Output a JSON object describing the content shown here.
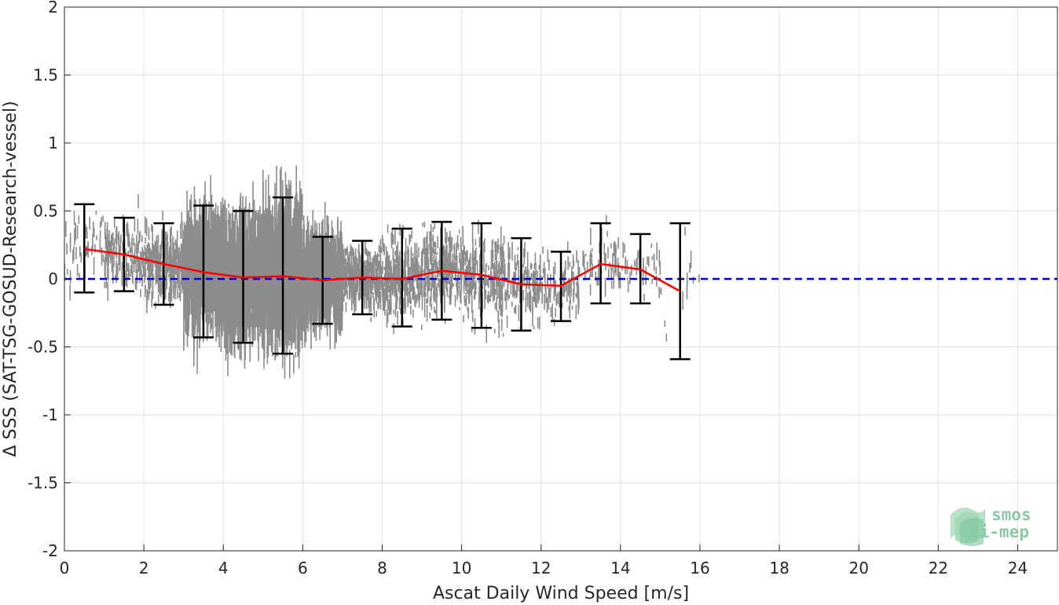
{
  "chart_data": {
    "type": "scatter",
    "title": "",
    "xlabel": "Ascat Daily Wind Speed [m/s]",
    "ylabel": "Δ SSS (SAT-TSG-GOSUD-Research-vessel)",
    "xlim": [
      0,
      25
    ],
    "ylim": [
      -2,
      2
    ],
    "xticks": [
      0,
      2,
      4,
      6,
      8,
      10,
      12,
      14,
      16,
      18,
      20,
      22,
      24
    ],
    "yticks": [
      -2,
      -1.5,
      -1,
      -0.5,
      0,
      0.5,
      1,
      1.5,
      2
    ],
    "xtick_labels": [
      "0",
      "2",
      "4",
      "6",
      "8",
      "10",
      "12",
      "14",
      "16",
      "18",
      "20",
      "22",
      "24"
    ],
    "ytick_labels": [
      "-2",
      "-1.5",
      "-1",
      "-0.5",
      "0",
      "0.5",
      "1",
      "1.5",
      "2"
    ],
    "grid": true,
    "scatter_color": "#808080",
    "mean_color": "#ff0000",
    "errorbar_color": "#000000",
    "zero_line_color": "#0000cc",
    "zero_line": 0,
    "bins": [
      {
        "x": 0.5,
        "mean": 0.22,
        "low": -0.1,
        "high": 0.55
      },
      {
        "x": 1.5,
        "mean": 0.18,
        "low": -0.09,
        "high": 0.45
      },
      {
        "x": 2.5,
        "mean": 0.11,
        "low": -0.19,
        "high": 0.41
      },
      {
        "x": 3.5,
        "mean": 0.05,
        "low": -0.43,
        "high": 0.54
      },
      {
        "x": 4.5,
        "mean": 0.01,
        "low": -0.47,
        "high": 0.5
      },
      {
        "x": 5.5,
        "mean": 0.02,
        "low": -0.55,
        "high": 0.6
      },
      {
        "x": 6.5,
        "mean": -0.01,
        "low": -0.33,
        "high": 0.31
      },
      {
        "x": 7.5,
        "mean": 0.01,
        "low": -0.26,
        "high": 0.28
      },
      {
        "x": 8.5,
        "mean": 0.0,
        "low": -0.35,
        "high": 0.37
      },
      {
        "x": 9.5,
        "mean": 0.06,
        "low": -0.3,
        "high": 0.42
      },
      {
        "x": 10.5,
        "mean": 0.03,
        "low": -0.36,
        "high": 0.41
      },
      {
        "x": 11.5,
        "mean": -0.04,
        "low": -0.38,
        "high": 0.3
      },
      {
        "x": 12.5,
        "mean": -0.05,
        "low": -0.31,
        "high": 0.2
      },
      {
        "x": 13.5,
        "mean": 0.11,
        "low": -0.18,
        "high": 0.41
      },
      {
        "x": 14.5,
        "mean": 0.07,
        "low": -0.18,
        "high": 0.33
      },
      {
        "x": 15.5,
        "mean": -0.09,
        "low": -0.59,
        "high": 0.41
      }
    ]
  },
  "logo": {
    "line1": "smos",
    "line2": "pi-mep"
  }
}
